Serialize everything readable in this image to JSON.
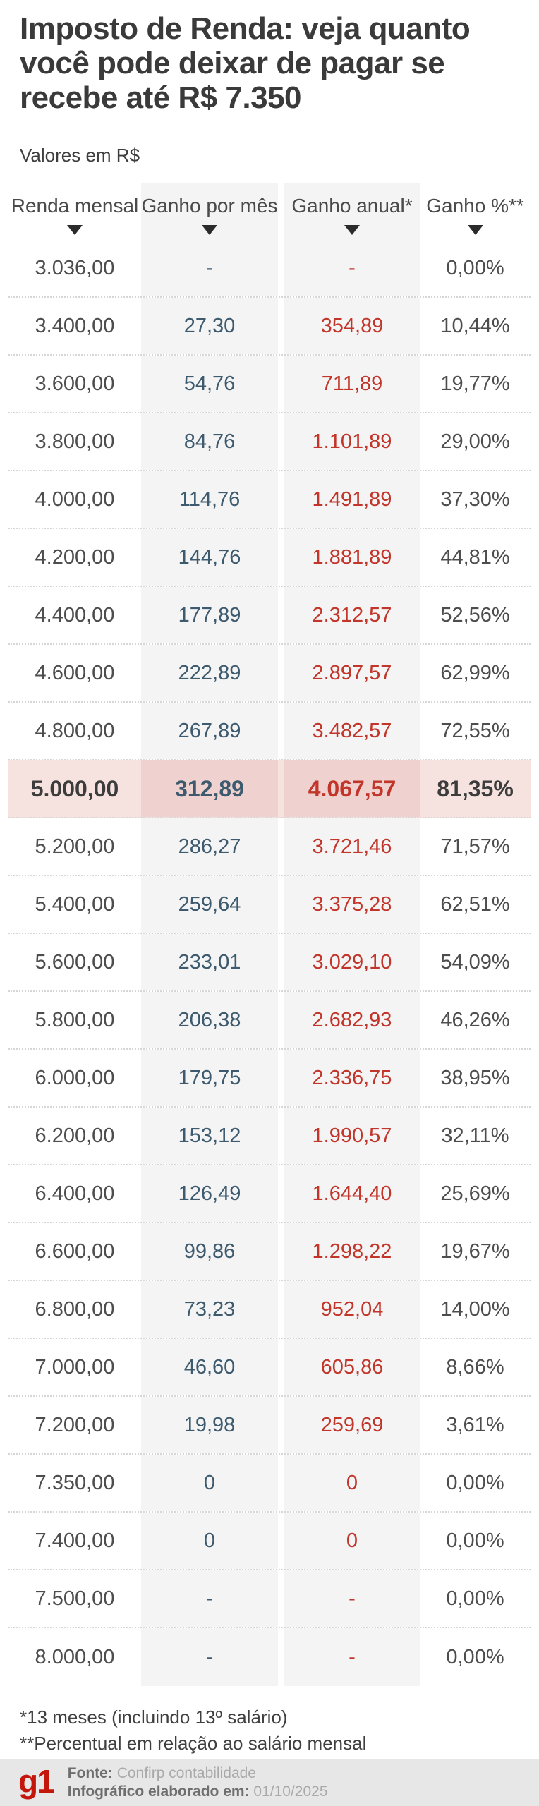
{
  "header": {
    "title_lines": [
      "Imposto de Renda: veja quanto",
      "você pode deixar de pagar se",
      "recebe até R$ 7.350"
    ],
    "subtitle": "Valores em R$"
  },
  "chart_data": {
    "type": "table",
    "title": "Imposto de Renda: veja quanto você pode deixar de pagar se recebe até R$ 7.350",
    "unit_note": "Valores em R$",
    "columns": [
      "Renda mensal",
      "Ganho por mês",
      "Ganho anual*",
      "Ganho %**"
    ],
    "rows": [
      [
        "3.036,00",
        "-",
        "-",
        "0,00%"
      ],
      [
        "3.400,00",
        "27,30",
        "354,89",
        "10,44%"
      ],
      [
        "3.600,00",
        "54,76",
        "711,89",
        "19,77%"
      ],
      [
        "3.800,00",
        "84,76",
        "1.101,89",
        "29,00%"
      ],
      [
        "4.000,00",
        "114,76",
        "1.491,89",
        "37,30%"
      ],
      [
        "4.200,00",
        "144,76",
        "1.881,89",
        "44,81%"
      ],
      [
        "4.400,00",
        "177,89",
        "2.312,57",
        "52,56%"
      ],
      [
        "4.600,00",
        "222,89",
        "2.897,57",
        "62,99%"
      ],
      [
        "4.800,00",
        "267,89",
        "3.482,57",
        "72,55%"
      ],
      [
        "5.000,00",
        "312,89",
        "4.067,57",
        "81,35%"
      ],
      [
        "5.200,00",
        "286,27",
        "3.721,46",
        "71,57%"
      ],
      [
        "5.400,00",
        "259,64",
        "3.375,28",
        "62,51%"
      ],
      [
        "5.600,00",
        "233,01",
        "3.029,10",
        "54,09%"
      ],
      [
        "5.800,00",
        "206,38",
        "2.682,93",
        "46,26%"
      ],
      [
        "6.000,00",
        "179,75",
        "2.336,75",
        "38,95%"
      ],
      [
        "6.200,00",
        "153,12",
        "1.990,57",
        "32,11%"
      ],
      [
        "6.400,00",
        "126,49",
        "1.644,40",
        "25,69%"
      ],
      [
        "6.600,00",
        "99,86",
        "1.298,22",
        "19,67%"
      ],
      [
        "6.800,00",
        "73,23",
        "952,04",
        "14,00%"
      ],
      [
        "7.000,00",
        "46,60",
        "605,86",
        "8,66%"
      ],
      [
        "7.200,00",
        "19,98",
        "259,69",
        "3,61%"
      ],
      [
        "7.350,00",
        "0",
        "0",
        "0,00%"
      ],
      [
        "7.400,00",
        "0",
        "0",
        "0,00%"
      ],
      [
        "7.500,00",
        "-",
        "-",
        "0,00%"
      ],
      [
        "8.000,00",
        "-",
        "-",
        "0,00%"
      ]
    ],
    "highlight_index": 9,
    "highlighted_row": "5.000,00",
    "legend_position": "none",
    "grid": "dotted-row-separators"
  },
  "footnotes": [
    "*13 meses (incluindo 13º salário)",
    "**Percentual em relação ao salário mensal"
  ],
  "footer": {
    "logo": "g1",
    "source_label": "Fonte:",
    "source_value": "Confirp contabilidade",
    "date_label": "Infográfico elaborado em:",
    "date_value": "01/10/2025"
  },
  "colors": {
    "title_text": "#3a3a3a",
    "body_text": "#4d4d4d",
    "monthly_gain_blue": "#3d5a6e",
    "annual_gain_red": "#c2352a",
    "shaded_column_bg": "#f4f4f4",
    "highlight_row_bg": "#f6e2df",
    "highlight_shaded_bg": "#efd2cf",
    "footer_bg": "#e7e7e7",
    "g1_logo_red": "#c4170c"
  }
}
